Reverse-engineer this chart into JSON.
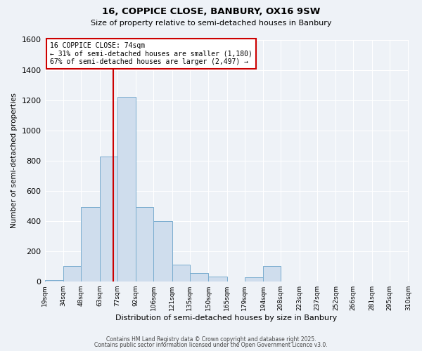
{
  "title1": "16, COPPICE CLOSE, BANBURY, OX16 9SW",
  "title2": "Size of property relative to semi-detached houses in Banbury",
  "xlabel": "Distribution of semi-detached houses by size in Banbury",
  "ylabel": "Number of semi-detached properties",
  "bin_labels": [
    "19sqm",
    "34sqm",
    "48sqm",
    "63sqm",
    "77sqm",
    "92sqm",
    "106sqm",
    "121sqm",
    "135sqm",
    "150sqm",
    "165sqm",
    "179sqm",
    "194sqm",
    "208sqm",
    "223sqm",
    "237sqm",
    "252sqm",
    "266sqm",
    "281sqm",
    "295sqm",
    "310sqm"
  ],
  "bin_edges": [
    19,
    34,
    48,
    63,
    77,
    92,
    106,
    121,
    135,
    150,
    165,
    179,
    194,
    208,
    223,
    237,
    252,
    266,
    281,
    295,
    310
  ],
  "bar_values": [
    10,
    100,
    490,
    825,
    1220,
    490,
    400,
    110,
    55,
    30,
    0,
    25,
    100,
    0,
    0,
    0,
    0,
    0,
    0,
    0
  ],
  "bar_facecolor": "#cfdded",
  "bar_edgecolor": "#7aadcf",
  "property_value": 74,
  "vline_color": "#cc0000",
  "annotation_line1": "16 COPPICE CLOSE: 74sqm",
  "annotation_line2": "← 31% of semi-detached houses are smaller (1,180)",
  "annotation_line3": "67% of semi-detached houses are larger (2,497) →",
  "annotation_boxcolor": "#ffffff",
  "annotation_boxedge": "#cc0000",
  "footer1": "Contains HM Land Registry data © Crown copyright and database right 2025.",
  "footer2": "Contains public sector information licensed under the Open Government Licence v3.0.",
  "ylim": [
    0,
    1600
  ],
  "yticks": [
    0,
    200,
    400,
    600,
    800,
    1000,
    1200,
    1400,
    1600
  ],
  "bg_color": "#eef2f7",
  "plot_bg_color": "#eef2f7",
  "grid_color": "#ffffff"
}
